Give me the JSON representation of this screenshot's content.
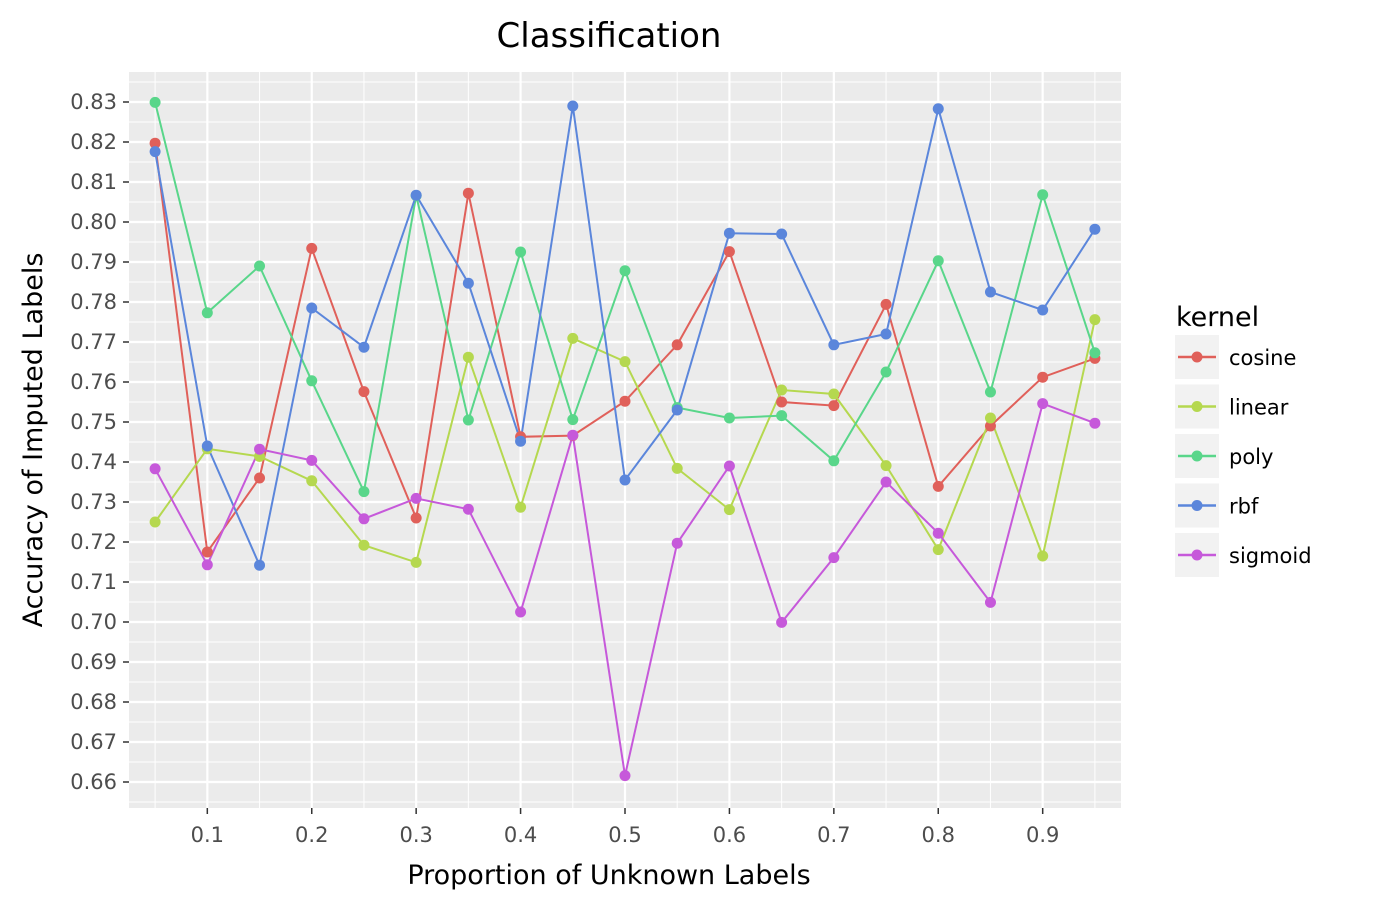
{
  "chart_data": {
    "type": "line",
    "title": "Classification",
    "xlabel": "Proportion of Unknown Labels",
    "ylabel": "Accuracy of Imputed Labels",
    "xlim": [
      0.025,
      0.975
    ],
    "ylim": [
      0.6535,
      0.8375
    ],
    "xticks": [
      0.1,
      0.2,
      0.3,
      0.4,
      0.5,
      0.6,
      0.7,
      0.8,
      0.9
    ],
    "xtick_labels": [
      "0.1",
      "0.2",
      "0.3",
      "0.4",
      "0.5",
      "0.6",
      "0.7",
      "0.8",
      "0.9"
    ],
    "yticks": [
      0.66,
      0.67,
      0.68,
      0.69,
      0.7,
      0.71,
      0.72,
      0.73,
      0.74,
      0.75,
      0.76,
      0.77,
      0.78,
      0.79,
      0.8,
      0.81,
      0.82,
      0.83
    ],
    "ytick_labels": [
      "0.66",
      "0.67",
      "0.68",
      "0.69",
      "0.70",
      "0.71",
      "0.72",
      "0.73",
      "0.74",
      "0.75",
      "0.76",
      "0.77",
      "0.78",
      "0.79",
      "0.80",
      "0.81",
      "0.82",
      "0.83"
    ],
    "grid": true,
    "legend": {
      "title": "kernel",
      "position": "right"
    },
    "x": [
      0.05,
      0.1,
      0.15,
      0.2,
      0.25,
      0.3,
      0.35,
      0.4,
      0.45,
      0.5,
      0.55,
      0.6,
      0.65,
      0.7,
      0.75,
      0.8,
      0.85,
      0.9,
      0.95
    ],
    "series": [
      {
        "name": "cosine",
        "color": "#e0605a",
        "values": [
          0.8197,
          0.7175,
          0.736,
          0.7934,
          0.7576,
          0.726,
          0.8072,
          0.7463,
          0.7466,
          0.7552,
          0.7693,
          0.7926,
          0.755,
          0.7541,
          0.7794,
          0.7339,
          0.749,
          0.7612,
          0.7659
        ]
      },
      {
        "name": "linear",
        "color": "#b5d84f",
        "values": [
          0.725,
          0.7433,
          0.7414,
          0.7353,
          0.7192,
          0.7149,
          0.7662,
          0.7287,
          0.7709,
          0.7651,
          0.7384,
          0.7281,
          0.758,
          0.757,
          0.7391,
          0.7181,
          0.751,
          0.7165,
          0.7756
        ]
      },
      {
        "name": "poly",
        "color": "#59d68a",
        "values": [
          0.8299,
          0.7773,
          0.789,
          0.7603,
          0.7326,
          0.8066,
          0.7505,
          0.7925,
          0.7506,
          0.7878,
          0.7536,
          0.751,
          0.7516,
          0.7403,
          0.7625,
          0.7903,
          0.7575,
          0.8068,
          0.7673
        ]
      },
      {
        "name": "rbf",
        "color": "#5b86db",
        "values": [
          0.8176,
          0.744,
          0.7142,
          0.7785,
          0.7687,
          0.8067,
          0.7847,
          0.7452,
          0.829,
          0.7355,
          0.753,
          0.7972,
          0.797,
          0.7693,
          0.772,
          0.8283,
          0.7825,
          0.778,
          0.7982
        ]
      },
      {
        "name": "sigmoid",
        "color": "#c659da",
        "values": [
          0.7383,
          0.7143,
          0.7432,
          0.7404,
          0.7258,
          0.7309,
          0.7282,
          0.7025,
          0.7467,
          0.6616,
          0.7197,
          0.739,
          0.6999,
          0.7161,
          0.735,
          0.7222,
          0.7049,
          0.7546,
          0.7497
        ]
      }
    ]
  }
}
